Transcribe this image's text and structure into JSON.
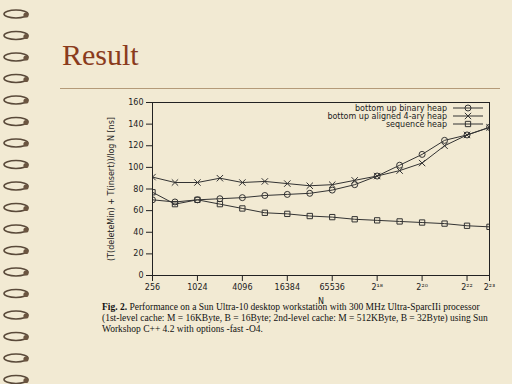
{
  "chart_data": {
    "type": "line",
    "title": "Result",
    "x_label": "N",
    "y_label": "(T(deleteMin) + T(insert))/log N [ns]",
    "caption_label": "Fig. 2.",
    "caption": "Performance on a Sun Ultra-10 desktop workstation with 300 MHz Ultra-SparcIIi processor (1st-level cache: M = 16KByte, B = 16Byte; 2nd-level cache: M = 512KByte, B = 32Byte) using Sun Workshop C++ 4.2 with options -fast -O4.",
    "log": "x",
    "grid": false,
    "legend": "top-right",
    "x": [
      256,
      512,
      1024,
      2048,
      4096,
      8192,
      16384,
      32768,
      65536,
      131072,
      262144,
      524288,
      1048576,
      2097152,
      4194304,
      8388608
    ],
    "series": [
      {
        "name": "bottom up binary heap",
        "color": "#333333",
        "marker": "circle",
        "values": [
          70,
          68,
          70,
          71,
          72,
          74,
          75,
          76,
          79,
          84,
          92,
          102,
          112,
          125,
          130,
          137
        ]
      },
      {
        "name": "bottom up aligned 4-ary heap",
        "color": "#333333",
        "marker": "times",
        "values": [
          91,
          86,
          86,
          90,
          86,
          87,
          85,
          83,
          84,
          88,
          92,
          97,
          104,
          120,
          130,
          137
        ]
      },
      {
        "name": "sequence heap",
        "color": "#333333",
        "marker": "square",
        "values": [
          77,
          66,
          70,
          66,
          62,
          58,
          57,
          55,
          54,
          52,
          51,
          50,
          49,
          48,
          46,
          45
        ]
      }
    ],
    "xlim": [
      256,
      8388608
    ],
    "xticks": [
      256,
      1024,
      4096,
      16384,
      65536,
      {
        "value": 262144,
        "label": "2¹⁸"
      },
      {
        "value": 1048576,
        "label": "2²⁰"
      },
      {
        "value": 4194304,
        "label": "2²²"
      },
      {
        "value": 8388608,
        "label": "2²³"
      }
    ],
    "ylim": [
      0,
      160
    ],
    "yticks": [
      0,
      20,
      40,
      60,
      80,
      100,
      120,
      140,
      160
    ]
  }
}
